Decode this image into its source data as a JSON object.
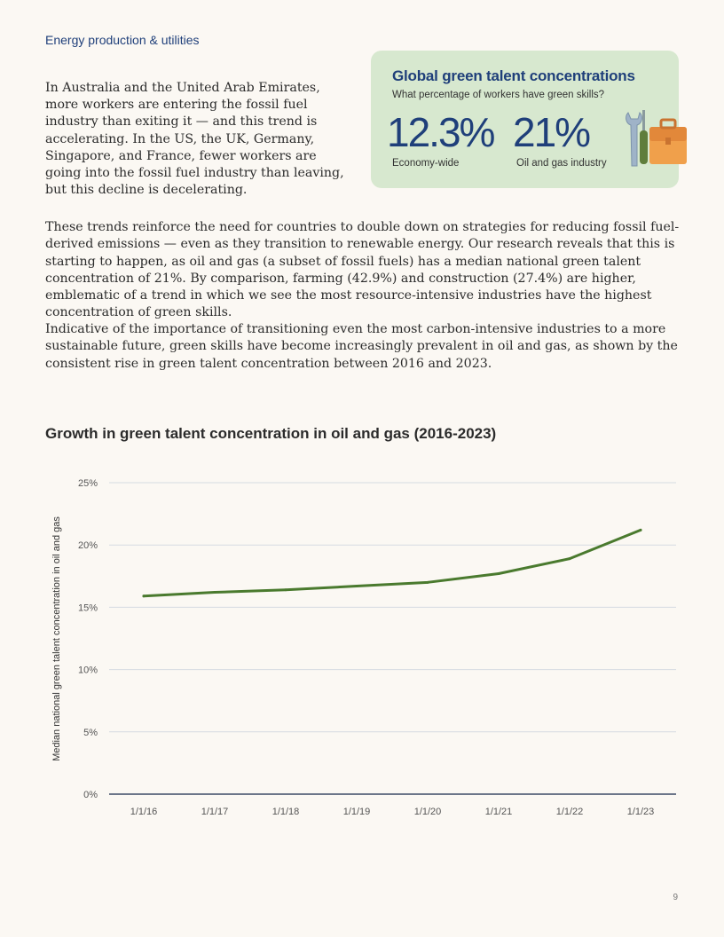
{
  "section_label": "Energy production & utilities",
  "intro_paragraph": "In Australia and the United Arab Emirates, more workers are entering the fossil fuel industry than exiting it — and this trend is accelerating. In the US, the UK, Germany, Singapore, and France, fewer workers are going into the fossil fuel industry than leaving, but this decline is decelerating.",
  "callout": {
    "title": "Global green talent concentrations",
    "subtitle": "What percentage of workers have green skills?",
    "stats": [
      {
        "value": "12.3%",
        "label": "Economy-wide"
      },
      {
        "value": "21%",
        "label": "Oil and gas industry"
      }
    ],
    "icon": "wrench-toolbox-icon",
    "background_color": "#d7e8cf",
    "accent_color": "#1f3f7a"
  },
  "paragraphs": [
    "These trends reinforce the need for countries to double down on strategies for reducing fossil fuel-derived emissions — even as they transition to renewable energy. Our research reveals that this is starting to happen, as oil and gas (a subset of fossil fuels) has a median national green talent concentration of 21%. By comparison, farming (42.9%) and construction (27.4%) are higher, emblematic of a trend in which we see the most resource-intensive industries have the highest concentration of green skills.",
    "Indicative of the importance of transitioning even the most carbon-intensive industries to a more sustainable future, green skills have become increasingly prevalent in oil and gas, as shown by the consistent rise in green talent concentration between 2016 and 2023."
  ],
  "chart_data": {
    "type": "line",
    "title": "Growth in green talent concentration in oil and gas (2016-2023)",
    "xlabel": "",
    "ylabel": "Median national green talent concentration in oil and gas",
    "x": [
      "1/1/16",
      "1/1/17",
      "1/1/18",
      "1/1/19",
      "1/1/20",
      "1/1/21",
      "1/1/22",
      "1/1/23"
    ],
    "series": [
      {
        "values": [
          15.9,
          16.2,
          16.4,
          16.7,
          17.0,
          17.7,
          18.9,
          21.2
        ],
        "color": "#4a7a2e"
      }
    ],
    "yticks": [
      "0%",
      "5%",
      "10%",
      "15%",
      "20%",
      "25%"
    ],
    "ylim": [
      0,
      25
    ],
    "grid": true
  },
  "page_number": "9"
}
